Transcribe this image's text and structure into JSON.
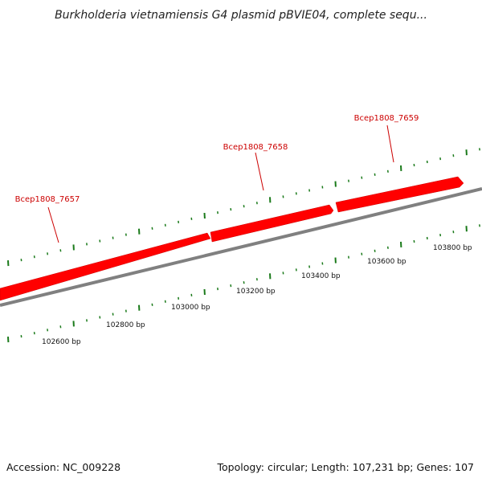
{
  "header": {
    "title": "Burkholderia vietnamiensis G4 plasmid pBVIE04, complete sequ..."
  },
  "genes": [
    {
      "label": "Bcep1808_7657",
      "color": "#ff0000"
    },
    {
      "label": "Bcep1808_7658",
      "color": "#ff0000"
    },
    {
      "label": "Bcep1808_7659",
      "color": "#ff0000"
    }
  ],
  "ruler": {
    "labels": [
      "102600 bp",
      "102800 bp",
      "103000 bp",
      "103200 bp",
      "103400 bp",
      "103600 bp",
      "103800 bp"
    ]
  },
  "footer": {
    "accession": "Accession: NC_009228",
    "summary": "Topology: circular; Length: 107,231 bp; Genes: 107"
  },
  "colors": {
    "gene": "#ff0000",
    "gene_label": "#cc0000",
    "backbone": "#808080",
    "tick": "#1a7a1a"
  }
}
